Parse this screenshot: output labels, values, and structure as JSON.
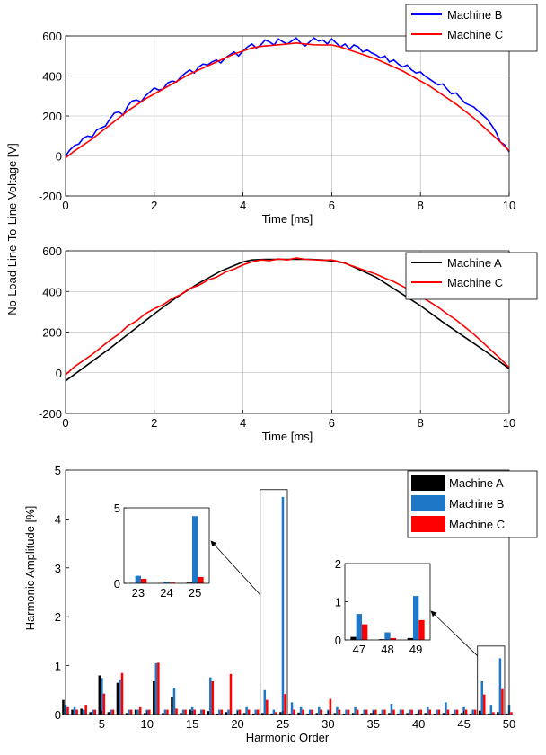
{
  "shared": {
    "ylabel_top": "No-Load Line-To-Line Voltage [V]"
  },
  "chart_data": [
    {
      "type": "line",
      "xlabel": "Time [ms]",
      "xlim": [
        0,
        10
      ],
      "ylim": [
        -200,
        600
      ],
      "xticks": [
        0,
        2,
        4,
        6,
        8,
        10
      ],
      "yticks": [
        -200,
        0,
        200,
        400,
        600
      ],
      "grid": true,
      "legend": "top-right",
      "series": [
        {
          "name": "Machine B",
          "color": "#0000ff",
          "x": [
            0,
            0.1,
            0.2,
            0.3,
            0.4,
            0.5,
            0.6,
            0.7,
            0.8,
            0.9,
            1.0,
            1.1,
            1.2,
            1.3,
            1.4,
            1.5,
            1.6,
            1.7,
            1.8,
            1.9,
            2.0,
            2.1,
            2.2,
            2.3,
            2.4,
            2.5,
            2.6,
            2.7,
            2.8,
            2.9,
            3.0,
            3.1,
            3.2,
            3.3,
            3.4,
            3.5,
            3.6,
            3.7,
            3.8,
            3.9,
            4.0,
            4.1,
            4.2,
            4.3,
            4.4,
            4.5,
            4.6,
            4.7,
            4.8,
            4.9,
            5.0,
            5.1,
            5.2,
            5.3,
            5.4,
            5.5,
            5.6,
            5.7,
            5.8,
            5.9,
            6.0,
            6.1,
            6.2,
            6.3,
            6.4,
            6.5,
            6.6,
            6.7,
            6.8,
            6.9,
            7.0,
            7.1,
            7.2,
            7.3,
            7.4,
            7.5,
            7.6,
            7.7,
            7.8,
            7.9,
            8.0,
            8.1,
            8.2,
            8.3,
            8.4,
            8.5,
            8.6,
            8.7,
            8.8,
            8.9,
            9.0,
            9.1,
            9.2,
            9.3,
            9.4,
            9.5,
            9.6,
            9.7,
            9.8,
            9.9,
            10.0
          ],
          "y": [
            0,
            30,
            52,
            60,
            90,
            100,
            95,
            130,
            140,
            150,
            185,
            215,
            220,
            205,
            250,
            275,
            280,
            270,
            300,
            320,
            340,
            330,
            335,
            365,
            375,
            370,
            395,
            415,
            430,
            415,
            445,
            460,
            455,
            470,
            480,
            465,
            490,
            505,
            520,
            500,
            525,
            545,
            560,
            540,
            555,
            580,
            570,
            555,
            585,
            570,
            560,
            575,
            590,
            565,
            550,
            570,
            590,
            575,
            580,
            560,
            585,
            565,
            545,
            560,
            535,
            555,
            545,
            520,
            530,
            515,
            505,
            490,
            500,
            470,
            480,
            460,
            445,
            455,
            430,
            415,
            420,
            400,
            385,
            370,
            355,
            360,
            335,
            310,
            315,
            290,
            265,
            255,
            245,
            225,
            205,
            185,
            155,
            120,
            70,
            55,
            20
          ]
        },
        {
          "name": "Machine C",
          "color": "#ff0000",
          "x": [
            0,
            0.2,
            0.4,
            0.6,
            0.8,
            1.0,
            1.2,
            1.4,
            1.6,
            1.8,
            2.0,
            2.2,
            2.4,
            2.6,
            2.8,
            3.0,
            3.2,
            3.4,
            3.6,
            3.8,
            4.0,
            4.2,
            4.4,
            4.6,
            4.8,
            5.0,
            5.2,
            5.4,
            5.6,
            5.8,
            6.0,
            6.2,
            6.4,
            6.6,
            6.8,
            7.0,
            7.2,
            7.4,
            7.6,
            7.8,
            8.0,
            8.2,
            8.4,
            8.6,
            8.8,
            9.0,
            9.2,
            9.4,
            9.6,
            9.8,
            10.0
          ],
          "y": [
            -10,
            25,
            55,
            85,
            120,
            155,
            190,
            225,
            255,
            285,
            310,
            335,
            360,
            385,
            410,
            430,
            450,
            470,
            490,
            510,
            525,
            540,
            548,
            552,
            556,
            560,
            565,
            560,
            556,
            555,
            555,
            545,
            530,
            515,
            500,
            485,
            465,
            445,
            425,
            400,
            375,
            350,
            320,
            290,
            260,
            225,
            190,
            150,
            110,
            70,
            25
          ]
        }
      ]
    },
    {
      "type": "line",
      "xlabel": "Time [ms]",
      "xlim": [
        0,
        10
      ],
      "ylim": [
        -200,
        600
      ],
      "xticks": [
        0,
        2,
        4,
        6,
        8,
        10
      ],
      "yticks": [
        -200,
        0,
        200,
        400,
        600
      ],
      "grid": true,
      "legend": "top-right",
      "series": [
        {
          "name": "Machine A",
          "color": "#000000",
          "x": [
            0,
            0.5,
            1.0,
            1.5,
            2.0,
            2.5,
            3.0,
            3.5,
            4.0,
            4.2,
            4.5,
            5.0,
            5.5,
            5.8,
            6.0,
            6.3,
            6.5,
            7.0,
            7.5,
            8.0,
            8.5,
            9.0,
            9.5,
            10.0
          ],
          "y": [
            -40,
            40,
            120,
            205,
            290,
            370,
            440,
            500,
            545,
            555,
            558,
            558,
            558,
            555,
            550,
            540,
            520,
            470,
            400,
            330,
            250,
            175,
            100,
            20
          ]
        },
        {
          "name": "Machine C",
          "color": "#ff0000",
          "x": [
            0,
            0.2,
            0.4,
            0.6,
            0.8,
            1.0,
            1.2,
            1.4,
            1.6,
            1.8,
            2.0,
            2.2,
            2.4,
            2.6,
            2.8,
            3.0,
            3.2,
            3.4,
            3.6,
            3.8,
            4.0,
            4.2,
            4.4,
            4.6,
            4.8,
            5.0,
            5.2,
            5.4,
            5.6,
            5.8,
            6.0,
            6.2,
            6.4,
            6.6,
            6.8,
            7.0,
            7.2,
            7.4,
            7.6,
            7.8,
            8.0,
            8.2,
            8.4,
            8.6,
            8.8,
            9.0,
            9.2,
            9.4,
            9.6,
            9.8,
            10.0
          ],
          "y": [
            -10,
            30,
            60,
            90,
            125,
            160,
            190,
            230,
            255,
            290,
            315,
            335,
            365,
            385,
            415,
            430,
            455,
            470,
            495,
            510,
            530,
            545,
            555,
            552,
            560,
            555,
            565,
            558,
            556,
            553,
            555,
            545,
            530,
            515,
            500,
            485,
            465,
            448,
            425,
            402,
            375,
            350,
            322,
            290,
            260,
            225,
            190,
            150,
            110,
            70,
            25
          ]
        }
      ]
    },
    {
      "type": "bar",
      "xlabel": "Harmonic Order",
      "ylabel": "Harmonic Amplitude [%]",
      "xlim": [
        1,
        50
      ],
      "ylim": [
        0,
        5
      ],
      "xticks": [
        5,
        10,
        15,
        20,
        25,
        30,
        35,
        40,
        45,
        50
      ],
      "yticks": [
        0,
        1,
        2,
        3,
        4,
        5
      ],
      "grid": false,
      "legend": "top-right",
      "categories": [
        1,
        2,
        3,
        4,
        5,
        6,
        7,
        8,
        9,
        10,
        11,
        12,
        13,
        14,
        15,
        16,
        17,
        18,
        19,
        20,
        21,
        22,
        23,
        24,
        25,
        26,
        27,
        28,
        29,
        30,
        31,
        32,
        33,
        34,
        35,
        36,
        37,
        38,
        39,
        40,
        41,
        42,
        43,
        44,
        45,
        46,
        47,
        48,
        49,
        50
      ],
      "series": [
        {
          "name": "Machine A",
          "color": "#000000",
          "values": [
            0.3,
            0.1,
            0.12,
            0.05,
            0.8,
            0.05,
            0.65,
            0.03,
            0.1,
            0.03,
            0.68,
            0.03,
            0.35,
            0.03,
            0.1,
            0.02,
            0.07,
            0.02,
            0.05,
            0.02,
            0.03,
            0.02,
            0.03,
            0.02,
            0.05,
            0.02,
            0.04,
            0.02,
            0.03,
            0.02,
            0.03,
            0.02,
            0.03,
            0.02,
            0.03,
            0.02,
            0.03,
            0.02,
            0.03,
            0.02,
            0.03,
            0.02,
            0.03,
            0.02,
            0.03,
            0.02,
            0.08,
            0.02,
            0.05,
            0.02
          ]
        },
        {
          "name": "Machine B",
          "color": "#1f77c8",
          "values": [
            0.2,
            0.15,
            0.1,
            0.1,
            0.75,
            0.1,
            0.72,
            0.1,
            0.1,
            0.1,
            1.05,
            0.1,
            0.55,
            0.1,
            0.15,
            0.1,
            0.76,
            0.1,
            0.1,
            0.1,
            0.15,
            0.1,
            0.5,
            0.1,
            4.45,
            0.25,
            0.15,
            0.1,
            0.15,
            0.1,
            0.15,
            0.1,
            0.15,
            0.1,
            0.1,
            0.1,
            0.22,
            0.1,
            0.1,
            0.1,
            0.15,
            0.1,
            0.25,
            0.1,
            0.15,
            0.1,
            0.68,
            0.2,
            1.15,
            0.2
          ]
        },
        {
          "name": "Machine C",
          "color": "#ff0000",
          "values": [
            0.15,
            0.1,
            0.2,
            0.1,
            0.43,
            0.1,
            0.85,
            0.1,
            0.15,
            0.1,
            1.06,
            0.1,
            0.12,
            0.1,
            0.1,
            0.1,
            0.68,
            0.1,
            0.83,
            0.1,
            0.1,
            0.1,
            0.3,
            0.05,
            0.42,
            0.1,
            0.1,
            0.1,
            0.1,
            0.32,
            0.1,
            0.1,
            0.1,
            0.1,
            0.1,
            0.1,
            0.1,
            0.1,
            0.1,
            0.1,
            0.1,
            0.1,
            0.1,
            0.1,
            0.1,
            0.1,
            0.41,
            0.05,
            0.52,
            0.05
          ]
        }
      ],
      "insets": [
        {
          "categories": [
            23,
            24,
            25
          ],
          "ylim": [
            0,
            5
          ],
          "yticks": [
            0,
            5
          ],
          "highlight_range": [
            22.5,
            25.5
          ]
        },
        {
          "categories": [
            47,
            48,
            49
          ],
          "ylim": [
            0,
            2
          ],
          "yticks": [
            0,
            1,
            2
          ],
          "highlight_range": [
            46.5,
            49.5
          ]
        }
      ]
    }
  ]
}
